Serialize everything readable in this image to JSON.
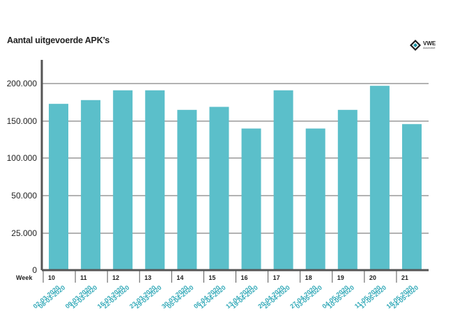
{
  "title": "Aantal uitgevoerde APK’s",
  "logo": {
    "brand": "VWE",
    "tagline": "Automotive",
    "accent": "#1a8fa0"
  },
  "chart_data": {
    "type": "bar",
    "title": "Aantal uitgevoerde APK’s",
    "x_label": "Week",
    "categories": [
      "10",
      "11",
      "12",
      "13",
      "14",
      "15",
      "16",
      "17",
      "18",
      "19",
      "20",
      "21"
    ],
    "date_ranges": [
      [
        "02-03-2020",
        "08-03-2020"
      ],
      [
        "09-03-2020",
        "15-03-2020"
      ],
      [
        "16-03-2020",
        "22-03-2020"
      ],
      [
        "23-03-2020",
        "29-03-2020"
      ],
      [
        "30-03-2020",
        "05-04-2020"
      ],
      [
        "06-04-2020",
        "12-04-2020"
      ],
      [
        "13-04-2020",
        "19-04-2020"
      ],
      [
        "20-04-2020",
        "26-04-2020"
      ],
      [
        "27-04-2020",
        "03-05-2020"
      ],
      [
        "04-05-2020",
        "10-05-2020"
      ],
      [
        "11-05-2020",
        "17-05-2020"
      ],
      [
        "18-05-2020",
        "24-05-2020"
      ]
    ],
    "values": [
      173000,
      178000,
      191000,
      191000,
      165000,
      169000,
      140000,
      191000,
      140000,
      165000,
      197000,
      146000
    ],
    "y_ticks": [
      0,
      25000,
      50000,
      100000,
      150000,
      200000
    ],
    "y_tick_labels": [
      "0",
      "25.000",
      "50.000",
      "100.000",
      "150.000",
      "200.000"
    ],
    "grid": true,
    "colors": {
      "bar": "#5bbfca",
      "axis": "#555555",
      "grid": "#666666",
      "date_label": "#33a9b8"
    }
  }
}
